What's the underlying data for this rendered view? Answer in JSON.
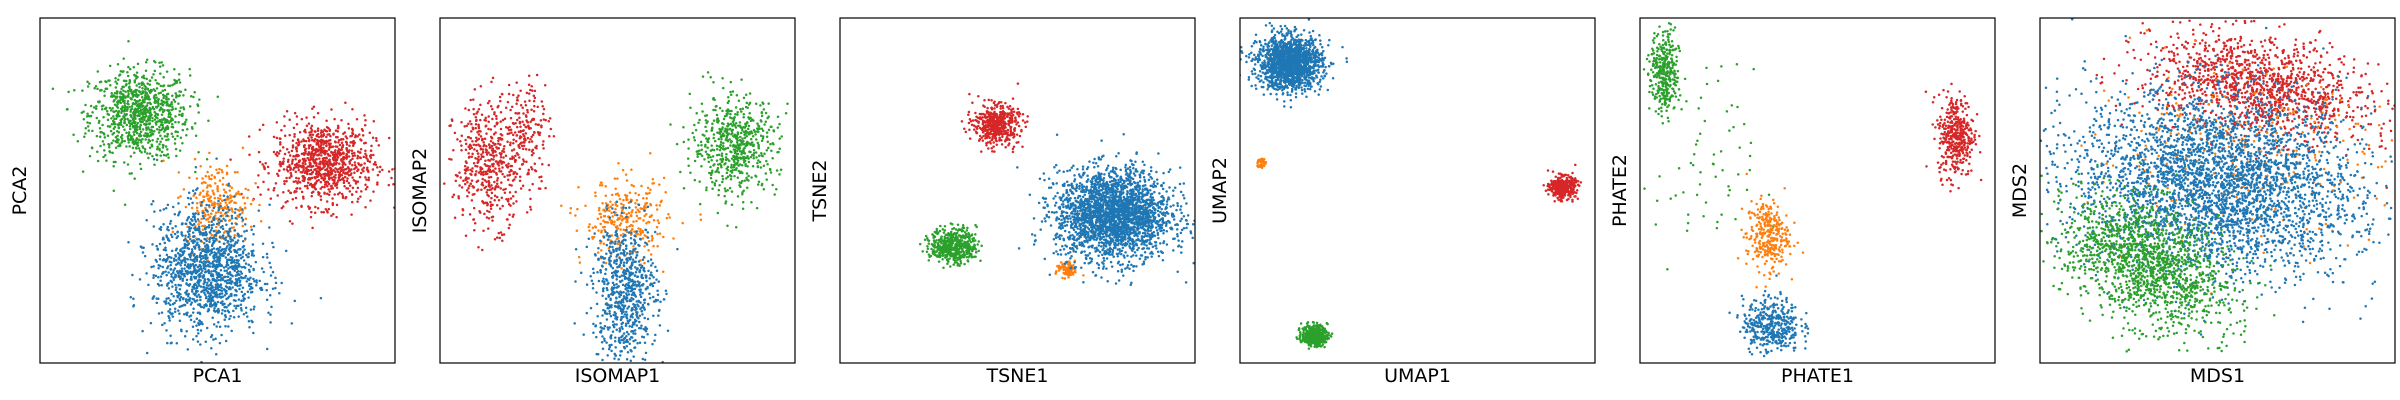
{
  "colors": {
    "blue": "#1f77b4",
    "orange": "#ff7f0e",
    "green": "#2ca02c",
    "red": "#d62728"
  },
  "chart_data": [
    {
      "type": "scatter",
      "xlabel": "PCA1",
      "ylabel": "PCA2",
      "xlim": [
        0,
        1
      ],
      "ylim": [
        0,
        1
      ],
      "grid": false,
      "ticks": false,
      "clusters": [
        {
          "color": "green",
          "cx": 0.28,
          "cy": 0.72,
          "sx": 0.07,
          "sy": 0.065,
          "n": 900
        },
        {
          "color": "red",
          "cx": 0.8,
          "cy": 0.58,
          "sx": 0.07,
          "sy": 0.06,
          "n": 900
        },
        {
          "color": "orange",
          "cx": 0.5,
          "cy": 0.46,
          "sx": 0.045,
          "sy": 0.06,
          "n": 250
        },
        {
          "color": "blue",
          "cx": 0.47,
          "cy": 0.27,
          "sx": 0.075,
          "sy": 0.09,
          "n": 1300
        }
      ]
    },
    {
      "type": "scatter",
      "xlabel": "ISOMAP1",
      "ylabel": "ISOMAP2",
      "xlim": [
        0,
        1
      ],
      "ylim": [
        0,
        1
      ],
      "grid": false,
      "ticks": false,
      "clusters": [
        {
          "color": "red",
          "cx": 0.14,
          "cy": 0.58,
          "sx": 0.05,
          "sy": 0.09,
          "n": 500
        },
        {
          "color": "red",
          "cx": 0.25,
          "cy": 0.68,
          "sx": 0.03,
          "sy": 0.08,
          "n": 150
        },
        {
          "color": "green",
          "cx": 0.83,
          "cy": 0.63,
          "sx": 0.06,
          "sy": 0.07,
          "n": 600
        },
        {
          "color": "orange",
          "cx": 0.52,
          "cy": 0.41,
          "sx": 0.06,
          "sy": 0.06,
          "n": 300
        },
        {
          "color": "blue",
          "cx": 0.52,
          "cy": 0.21,
          "sx": 0.045,
          "sy": 0.1,
          "n": 700
        }
      ]
    },
    {
      "type": "scatter",
      "xlabel": "TSNE1",
      "ylabel": "TSNE2",
      "xlim": [
        0,
        1
      ],
      "ylim": [
        0,
        1
      ],
      "grid": false,
      "ticks": false,
      "clusters": [
        {
          "color": "red",
          "cx": 0.44,
          "cy": 0.69,
          "sx": 0.032,
          "sy": 0.028,
          "n": 500
        },
        {
          "color": "green",
          "cx": 0.32,
          "cy": 0.34,
          "sx": 0.032,
          "sy": 0.025,
          "n": 500
        },
        {
          "color": "orange",
          "cx": 0.64,
          "cy": 0.27,
          "sx": 0.015,
          "sy": 0.012,
          "n": 80
        },
        {
          "color": "blue",
          "cx": 0.77,
          "cy": 0.43,
          "sx": 0.08,
          "sy": 0.065,
          "n": 2500
        }
      ]
    },
    {
      "type": "scatter",
      "xlabel": "UMAP1",
      "ylabel": "UMAP2",
      "xlim": [
        0,
        1
      ],
      "ylim": [
        0,
        1
      ],
      "grid": false,
      "ticks": false,
      "clusters": [
        {
          "color": "blue",
          "cx": 0.14,
          "cy": 0.87,
          "sx": 0.045,
          "sy": 0.038,
          "n": 1600
        },
        {
          "color": "orange",
          "cx": 0.06,
          "cy": 0.58,
          "sx": 0.006,
          "sy": 0.008,
          "n": 40
        },
        {
          "color": "red",
          "cx": 0.91,
          "cy": 0.51,
          "sx": 0.018,
          "sy": 0.015,
          "n": 400
        },
        {
          "color": "green",
          "cx": 0.21,
          "cy": 0.08,
          "sx": 0.018,
          "sy": 0.015,
          "n": 400
        }
      ]
    },
    {
      "type": "scatter",
      "xlabel": "PHATE1",
      "ylabel": "PHATE2",
      "xlim": [
        0,
        1
      ],
      "ylim": [
        0,
        1
      ],
      "grid": false,
      "ticks": false,
      "clusters": [
        {
          "color": "green",
          "cx": 0.07,
          "cy": 0.84,
          "sx": 0.02,
          "sy": 0.06,
          "n": 350
        },
        {
          "color": "green",
          "cx": 0.18,
          "cy": 0.55,
          "sx": 0.07,
          "sy": 0.15,
          "n": 60
        },
        {
          "color": "red",
          "cx": 0.89,
          "cy": 0.66,
          "sx": 0.025,
          "sy": 0.06,
          "n": 400
        },
        {
          "color": "orange",
          "cx": 0.36,
          "cy": 0.37,
          "sx": 0.03,
          "sy": 0.05,
          "n": 300
        },
        {
          "color": "blue",
          "cx": 0.37,
          "cy": 0.11,
          "sx": 0.04,
          "sy": 0.04,
          "n": 400
        }
      ]
    },
    {
      "type": "scatter",
      "xlabel": "MDS1",
      "ylabel": "MDS2",
      "xlim": [
        0,
        1
      ],
      "ylim": [
        0,
        1
      ],
      "grid": false,
      "ticks": false,
      "clusters": [
        {
          "color": "red",
          "cx": 0.62,
          "cy": 0.8,
          "sx": 0.16,
          "sy": 0.07,
          "n": 1300,
          "rot": -12
        },
        {
          "color": "orange",
          "cx": 0.55,
          "cy": 0.6,
          "sx": 0.2,
          "sy": 0.12,
          "n": 300
        },
        {
          "color": "blue",
          "cx": 0.5,
          "cy": 0.52,
          "sx": 0.2,
          "sy": 0.13,
          "n": 3500,
          "rot": -8
        },
        {
          "color": "green",
          "cx": 0.3,
          "cy": 0.29,
          "sx": 0.13,
          "sy": 0.08,
          "n": 1500,
          "rot": -30
        }
      ]
    }
  ]
}
